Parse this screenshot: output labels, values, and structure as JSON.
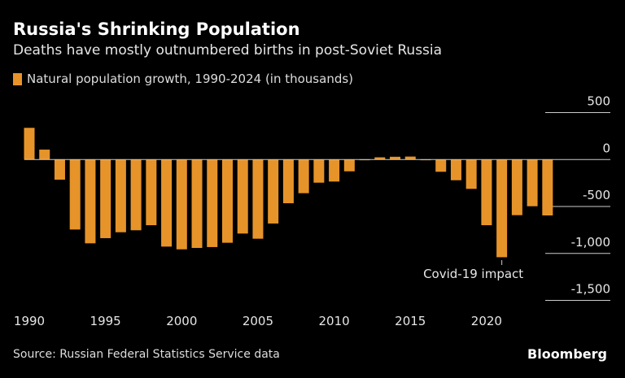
{
  "title": "Russia's Shrinking Population",
  "subtitle": "Deaths have mostly outnumbered births in post-Soviet Russia",
  "source": "Source: Russian Federal Statistics Service data",
  "logo": "Bloomberg",
  "chart_data": {
    "type": "bar",
    "title": "Russia's Shrinking Population",
    "subtitle": "Deaths have mostly outnumbered births in post-Soviet Russia",
    "series": [
      {
        "name": "Natural population growth, 1990-2024 (in thousands)",
        "color": "#e6942a",
        "x": [
          1990,
          1991,
          1992,
          1993,
          1994,
          1995,
          1996,
          1997,
          1998,
          1999,
          2000,
          2001,
          2002,
          2003,
          2004,
          2005,
          2006,
          2007,
          2008,
          2009,
          2010,
          2011,
          2012,
          2013,
          2014,
          2015,
          2016,
          2017,
          2018,
          2019,
          2020,
          2021,
          2022,
          2023,
          2024
        ],
        "values": [
          338,
          106,
          -214,
          -745,
          -892,
          -837,
          -774,
          -753,
          -699,
          -927,
          -956,
          -941,
          -932,
          -886,
          -788,
          -843,
          -681,
          -465,
          -358,
          -246,
          -234,
          -125,
          -4,
          24,
          30,
          32,
          -2,
          -130,
          -220,
          -312,
          -699,
          -1040,
          -592,
          -497,
          -595
        ]
      }
    ],
    "x_ticks": [
      1990,
      1995,
      2000,
      2005,
      2010,
      2015,
      2020
    ],
    "y_ticks": [
      500,
      0,
      -500,
      -1000,
      -1500
    ],
    "y_tick_labels": [
      "500",
      "0",
      "-500",
      "-1,000",
      "-1,500"
    ],
    "ylim": [
      -1600,
      600
    ],
    "y_axis_side": "right",
    "legend_placement": "top-left",
    "annotations": [
      {
        "text": "Covid-19 impact",
        "x": 2021
      }
    ]
  }
}
